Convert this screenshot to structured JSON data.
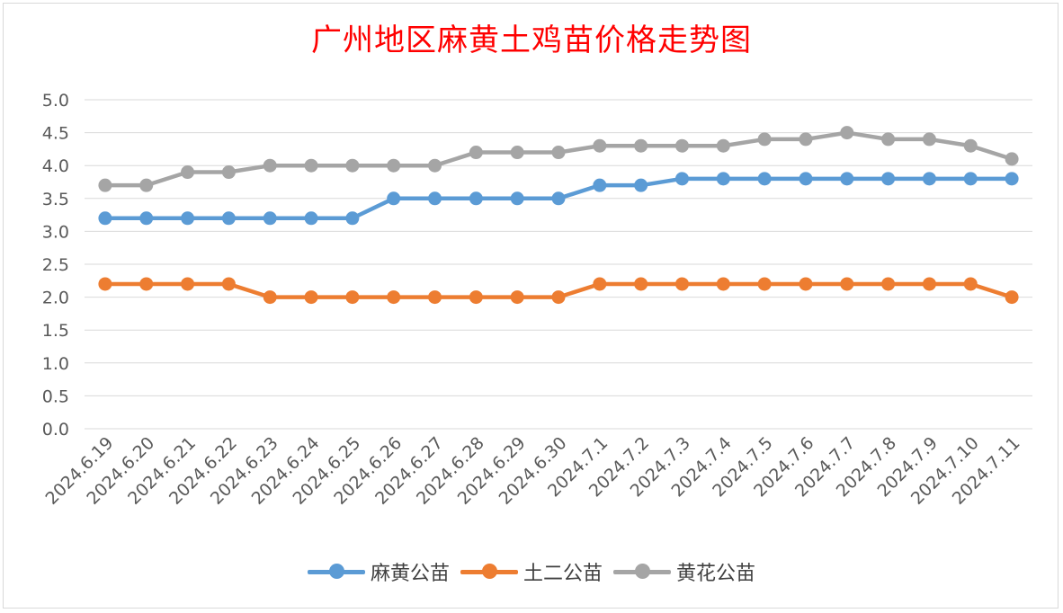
{
  "chart_data": {
    "type": "line",
    "title": "广州地区麻黄土鸡苗价格走势图",
    "xlabel": "",
    "ylabel": "",
    "categories": [
      "2024.6.19",
      "2024.6.20",
      "2024.6.21",
      "2024.6.22",
      "2024.6.23",
      "2024.6.24",
      "2024.6.25",
      "2024.6.26",
      "2024.6.27",
      "2024.6.28",
      "2024.6.29",
      "2024.6.30",
      "2024.7.1",
      "2024.7.2",
      "2024.7.3",
      "2024.7.4",
      "2024.7.5",
      "2024.7.6",
      "2024.7.7",
      "2024.7.8",
      "2024.7.9",
      "2024.7.10",
      "2024.7.11"
    ],
    "y_ticks": [
      "0.0",
      "0.5",
      "1.0",
      "1.5",
      "2.0",
      "2.5",
      "3.0",
      "3.5",
      "4.0",
      "4.5",
      "5.0"
    ],
    "ylim": [
      0,
      5
    ],
    "grid": true,
    "legend_position": "bottom",
    "series": [
      {
        "name": "麻黄公苗",
        "color": "#5b9bd5",
        "values": [
          3.2,
          3.2,
          3.2,
          3.2,
          3.2,
          3.2,
          3.2,
          3.5,
          3.5,
          3.5,
          3.5,
          3.5,
          3.7,
          3.7,
          3.8,
          3.8,
          3.8,
          3.8,
          3.8,
          3.8,
          3.8,
          3.8,
          3.8
        ]
      },
      {
        "name": "土二公苗",
        "color": "#ed7d31",
        "values": [
          2.2,
          2.2,
          2.2,
          2.2,
          2.0,
          2.0,
          2.0,
          2.0,
          2.0,
          2.0,
          2.0,
          2.0,
          2.2,
          2.2,
          2.2,
          2.2,
          2.2,
          2.2,
          2.2,
          2.2,
          2.2,
          2.2,
          2.0
        ]
      },
      {
        "name": "黄花公苗",
        "color": "#a5a5a5",
        "values": [
          3.7,
          3.7,
          3.9,
          3.9,
          4.0,
          4.0,
          4.0,
          4.0,
          4.0,
          4.2,
          4.2,
          4.2,
          4.3,
          4.3,
          4.3,
          4.3,
          4.4,
          4.4,
          4.5,
          4.4,
          4.4,
          4.3,
          4.1
        ]
      }
    ]
  }
}
